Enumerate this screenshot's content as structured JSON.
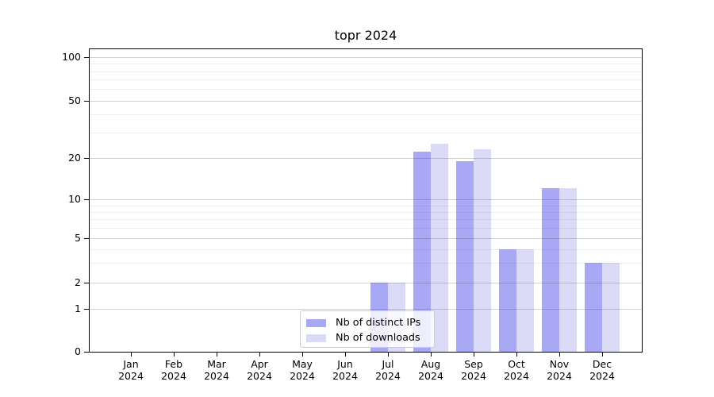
{
  "chart_data": {
    "type": "bar",
    "title": "topr 2024",
    "categories": [
      "Jan 2024",
      "Feb 2024",
      "Mar 2024",
      "Apr 2024",
      "May 2024",
      "Jun 2024",
      "Jul 2024",
      "Aug 2024",
      "Sep 2024",
      "Oct 2024",
      "Nov 2024",
      "Dec 2024"
    ],
    "months": [
      "Jan",
      "Feb",
      "Mar",
      "Apr",
      "May",
      "Jun",
      "Jul",
      "Aug",
      "Sep",
      "Oct",
      "Nov",
      "Dec"
    ],
    "year_label": "2024",
    "series": [
      {
        "name": "Nb of distinct IPs",
        "color": "#a8a8f5",
        "values": [
          0,
          0,
          0,
          0,
          0,
          0,
          2,
          22,
          19,
          4,
          12,
          3
        ]
      },
      {
        "name": "Nb of downloads",
        "color": "#dbdbf8",
        "values": [
          0,
          0,
          0,
          0,
          0,
          0,
          2,
          25,
          23,
          4,
          12,
          3
        ]
      }
    ],
    "xlabel": "",
    "ylabel": "",
    "y_axis": {
      "scale": "asinh-log-like",
      "major_ticks": [
        0,
        1,
        2,
        5,
        10,
        20,
        50,
        100
      ],
      "minor_gridlines": [
        3,
        4,
        6,
        7,
        8,
        9,
        30,
        40,
        60,
        70,
        80,
        90
      ],
      "tick_fracs": [
        [
          0,
          0
        ],
        [
          1,
          0.142
        ],
        [
          2,
          0.2284
        ],
        [
          5,
          0.3748
        ],
        [
          10,
          0.5038
        ],
        [
          20,
          0.6409
        ],
        [
          50,
          0.83
        ],
        [
          100,
          0.9738
        ]
      ]
    },
    "legend": {
      "position": "lower center-left",
      "entries": [
        "Nb of distinct IPs",
        "Nb of downloads"
      ]
    },
    "grid": {
      "horizontal_major": true,
      "horizontal_minor": true,
      "drawn_over_bars": true
    },
    "colors": {
      "grid_major": "rgba(70,70,70,0.25)",
      "grid_minor": "rgba(70,70,70,0.09)",
      "spine": "#000000",
      "background": "#ffffff"
    }
  }
}
